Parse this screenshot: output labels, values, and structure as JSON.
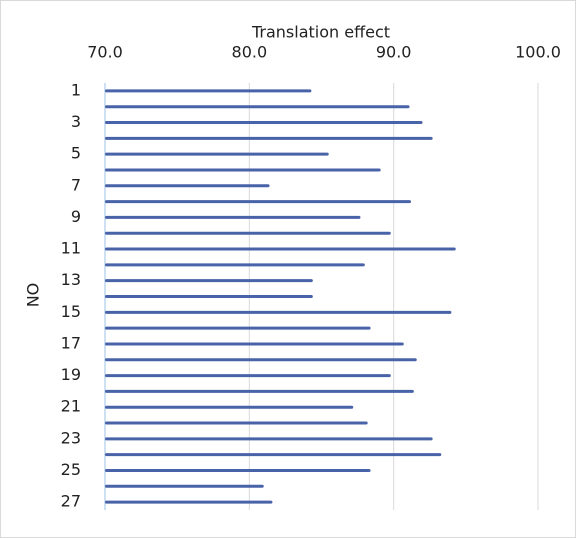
{
  "chart_data": {
    "type": "hbar",
    "x_label": "Translation effect",
    "y_label": "NO",
    "categories": [
      "1",
      null,
      "3",
      null,
      "5",
      null,
      "7",
      null,
      "9",
      null,
      "11",
      null,
      "13",
      null,
      "15",
      null,
      "17",
      null,
      "19",
      null,
      "21",
      null,
      "23",
      null,
      "25",
      null,
      "27"
    ],
    "values": [
      84.3,
      91.1,
      92.0,
      92.7,
      85.5,
      89.1,
      81.4,
      91.2,
      87.7,
      89.8,
      94.3,
      88.0,
      84.4,
      84.4,
      94.0,
      88.4,
      90.7,
      91.6,
      89.8,
      91.4,
      87.2,
      88.2,
      92.7,
      93.3,
      88.4,
      81.0,
      81.6
    ],
    "color": "#4863a8",
    "xlim": [
      70,
      100
    ],
    "xticks": [
      {
        "value": 70,
        "label": "70.0"
      },
      {
        "value": 80,
        "label": "80.0"
      },
      {
        "value": 90,
        "label": "90.0"
      },
      {
        "value": 100,
        "label": "100.0"
      }
    ],
    "grid": true
  }
}
